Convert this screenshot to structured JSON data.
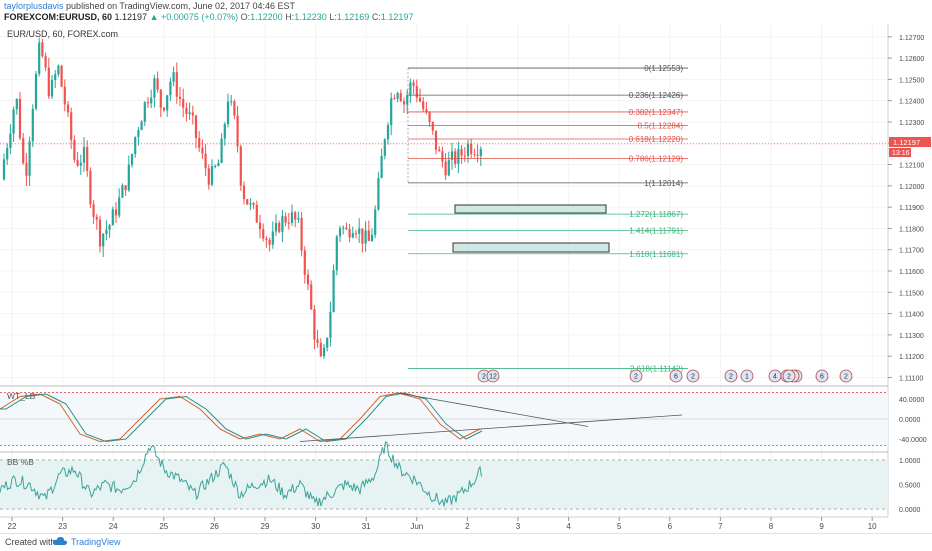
{
  "header": {
    "author": "taylorplusdavis",
    "published": "published on TradingView.com, June 02, 2017 04:46 EST",
    "symbol": "FOREXCOM:EURUSD, 60",
    "last": "1.12197",
    "change": "+0.00075 (+0.07%)",
    "o_label": "O:",
    "o_value": "1.12200",
    "h_label": "H:",
    "h_value": "1.12230",
    "l_label": "L:",
    "l_value": "1.12169",
    "c_label": "C:",
    "c_value": "1.12197"
  },
  "chart_title": "EUR/USD, 60, FOREX.com",
  "colors": {
    "up": "#26a69a",
    "down": "#ef5350",
    "fib_gray": "#555555",
    "fib_red": "#e0524c",
    "fib_green": "#3fb37f",
    "stoch_k": "#d0662e",
    "stoch_d": "#2a8f86",
    "bb": "#3aa39a",
    "bb_fill": "#e7f3f3",
    "price_tag": "#ef5350",
    "axis_text": "#4a4a4a"
  },
  "price_axis": {
    "ticks": [
      "1.12700",
      "1.12600",
      "1.12500",
      "1.12400",
      "1.12300",
      "1.12200",
      "1.12100",
      "1.12000",
      "1.11900",
      "1.11800",
      "1.11700",
      "1.11600",
      "1.11500",
      "1.11400",
      "1.11300",
      "1.11200",
      "1.11100"
    ],
    "current_price": "1.12197",
    "countdown": "13:16"
  },
  "time_axis": {
    "labels": [
      "22",
      "23",
      "24",
      "25",
      "26",
      "29",
      "30",
      "31",
      "Jun",
      "2",
      "3",
      "4",
      "5",
      "6",
      "7",
      "8",
      "9",
      "10"
    ]
  },
  "fib_levels": [
    {
      "ratio": "0",
      "price": "1.12553",
      "group": "gray"
    },
    {
      "ratio": "0.236",
      "price": "1.12426",
      "group": "gray"
    },
    {
      "ratio": "0.382",
      "price": "1.12347",
      "group": "red"
    },
    {
      "ratio": "0.5",
      "price": "1.12284",
      "group": "red"
    },
    {
      "ratio": "0.618",
      "price": "1.12220",
      "group": "red"
    },
    {
      "ratio": "0.786",
      "price": "1.12129",
      "group": "red"
    },
    {
      "ratio": "1",
      "price": "1.12014",
      "group": "gray"
    },
    {
      "ratio": "1.272",
      "price": "1.11867",
      "group": "green"
    },
    {
      "ratio": "1.414",
      "price": "1.11791",
      "group": "green"
    },
    {
      "ratio": "1.618",
      "price": "1.11681",
      "group": "green"
    },
    {
      "ratio": "2.618",
      "price": "1.11142",
      "group": "green"
    }
  ],
  "event_markers": [
    "2",
    "12",
    "2",
    "6",
    "2",
    "2",
    "1",
    "4",
    "2",
    "2",
    "4",
    "2",
    "6",
    "2"
  ],
  "stoch": {
    "name": "WT_LB",
    "ticks": [
      "40.0000",
      "0.0000",
      "-40.0000"
    ]
  },
  "bb": {
    "name": "BB %B",
    "ticks": [
      "1.0000",
      "0.5000",
      "0.0000"
    ]
  },
  "footer": {
    "created": "Created with",
    "brand": "TradingView"
  },
  "chart_data": {
    "type": "candlestick",
    "title": "EUR/USD, 60, FOREX.com",
    "symbol": "FOREXCOM:EURUSD",
    "interval": "60",
    "ylim": [
      1.1106,
      1.1276
    ],
    "x_labels": [
      "22",
      "23",
      "24",
      "25",
      "26",
      "29",
      "30",
      "31",
      "Jun",
      "2",
      "3",
      "4",
      "5",
      "6",
      "7",
      "8",
      "9",
      "10"
    ],
    "anchors": [
      [
        0,
        1.1203
      ],
      [
        8,
        1.1222
      ],
      [
        16,
        1.1243
      ],
      [
        25,
        1.1202
      ],
      [
        32,
        1.1236
      ],
      [
        40,
        1.1266
      ],
      [
        50,
        1.1243
      ],
      [
        58,
        1.1256
      ],
      [
        66,
        1.1236
      ],
      [
        75,
        1.1211
      ],
      [
        84,
        1.1214
      ],
      [
        92,
        1.1191
      ],
      [
        100,
        1.1176
      ],
      [
        110,
        1.1182
      ],
      [
        120,
        1.1194
      ],
      [
        128,
        1.1205
      ],
      [
        136,
        1.1225
      ],
      [
        146,
        1.124
      ],
      [
        154,
        1.1249
      ],
      [
        162,
        1.1236
      ],
      [
        172,
        1.1252
      ],
      [
        182,
        1.1238
      ],
      [
        192,
        1.123
      ],
      [
        200,
        1.1216
      ],
      [
        210,
        1.1203
      ],
      [
        220,
        1.1212
      ],
      [
        228,
        1.1242
      ],
      [
        236,
        1.1227
      ],
      [
        242,
        1.1198
      ],
      [
        250,
        1.119
      ],
      [
        260,
        1.1183
      ],
      [
        270,
        1.1172
      ],
      [
        280,
        1.1183
      ],
      [
        290,
        1.1186
      ],
      [
        298,
        1.1182
      ],
      [
        306,
        1.1158
      ],
      [
        314,
        1.1132
      ],
      [
        322,
        1.1114
      ],
      [
        330,
        1.114
      ],
      [
        338,
        1.1183
      ],
      [
        346,
        1.1178
      ],
      [
        354,
        1.1183
      ],
      [
        362,
        1.1176
      ],
      [
        370,
        1.1173
      ],
      [
        376,
        1.119
      ],
      [
        384,
        1.1222
      ],
      [
        392,
        1.1243
      ],
      [
        398,
        1.1247
      ],
      [
        404,
        1.1239
      ],
      [
        412,
        1.1249
      ],
      [
        420,
        1.124
      ],
      [
        428,
        1.123
      ],
      [
        434,
        1.1222
      ],
      [
        440,
        1.1213
      ],
      [
        446,
        1.1209
      ],
      [
        452,
        1.1212
      ],
      [
        460,
        1.1214
      ],
      [
        468,
        1.1219
      ],
      [
        476,
        1.1218
      ],
      [
        482,
        1.122
      ]
    ],
    "current_price": 1.12197,
    "fib_extension": [
      {
        "ratio": 0,
        "price": 1.12553
      },
      {
        "ratio": 0.236,
        "price": 1.12426
      },
      {
        "ratio": 0.382,
        "price": 1.12347
      },
      {
        "ratio": 0.5,
        "price": 1.12284
      },
      {
        "ratio": 0.618,
        "price": 1.1222
      },
      {
        "ratio": 0.786,
        "price": 1.12129
      },
      {
        "ratio": 1,
        "price": 1.12014
      },
      {
        "ratio": 1.272,
        "price": 1.11867
      },
      {
        "ratio": 1.414,
        "price": 1.11791
      },
      {
        "ratio": 1.618,
        "price": 1.11681
      },
      {
        "ratio": 2.618,
        "price": 1.11142
      }
    ],
    "stoch_ylim": [
      -60,
      60
    ],
    "stoch_anchors": [
      [
        0,
        20
      ],
      [
        20,
        45
      ],
      [
        40,
        50
      ],
      [
        60,
        30
      ],
      [
        80,
        -30
      ],
      [
        100,
        -45
      ],
      [
        120,
        -40
      ],
      [
        140,
        0
      ],
      [
        160,
        40
      ],
      [
        180,
        45
      ],
      [
        200,
        20
      ],
      [
        220,
        -20
      ],
      [
        240,
        -40
      ],
      [
        260,
        -30
      ],
      [
        280,
        -40
      ],
      [
        300,
        -20
      ],
      [
        320,
        -45
      ],
      [
        340,
        -40
      ],
      [
        360,
        0
      ],
      [
        380,
        45
      ],
      [
        398,
        52
      ],
      [
        420,
        40
      ],
      [
        440,
        -10
      ],
      [
        460,
        -40
      ],
      [
        480,
        -20
      ]
    ],
    "bb_ylim": [
      -0.1,
      1.1
    ],
    "bb_anchors": [
      [
        0,
        0.4
      ],
      [
        15,
        0.6
      ],
      [
        30,
        0.5
      ],
      [
        45,
        0.2
      ],
      [
        60,
        0.7
      ],
      [
        75,
        0.8
      ],
      [
        90,
        0.3
      ],
      [
        105,
        0.5
      ],
      [
        120,
        0.4
      ],
      [
        135,
        0.6
      ],
      [
        150,
        1.3
      ],
      [
        165,
        0.8
      ],
      [
        180,
        0.6
      ],
      [
        195,
        0.3
      ],
      [
        210,
        0.6
      ],
      [
        225,
        0.9
      ],
      [
        240,
        0.3
      ],
      [
        255,
        0.5
      ],
      [
        270,
        0.6
      ],
      [
        285,
        0.3
      ],
      [
        300,
        0.5
      ],
      [
        315,
        0.1
      ],
      [
        330,
        0.3
      ],
      [
        345,
        0.5
      ],
      [
        360,
        0.4
      ],
      [
        375,
        0.7
      ],
      [
        385,
        1.3
      ],
      [
        400,
        0.8
      ],
      [
        415,
        0.6
      ],
      [
        430,
        0.3
      ],
      [
        445,
        0.1
      ],
      [
        460,
        0.3
      ],
      [
        475,
        0.6
      ],
      [
        482,
        0.8
      ]
    ]
  }
}
